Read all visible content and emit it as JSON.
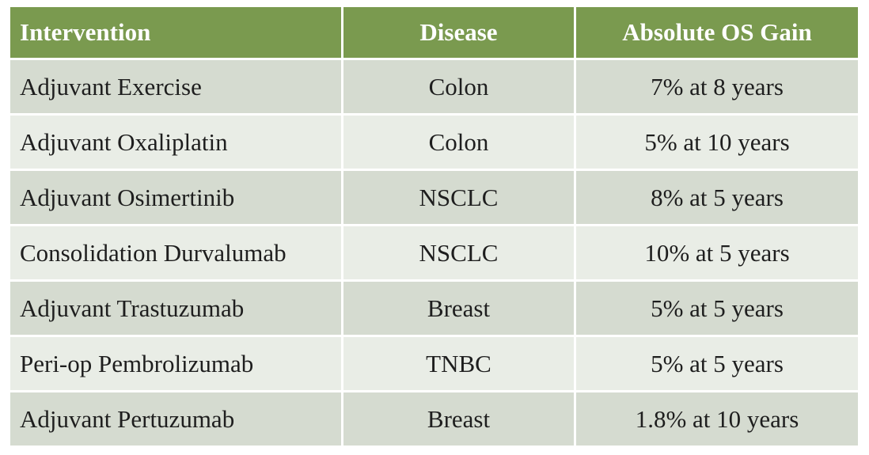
{
  "table": {
    "headers": {
      "intervention": "Intervention",
      "disease": "Disease",
      "gain": "Absolute OS Gain"
    },
    "rows": [
      {
        "intervention": "Adjuvant Exercise",
        "disease": "Colon",
        "gain": "7% at 8 years"
      },
      {
        "intervention": "Adjuvant Oxaliplatin",
        "disease": "Colon",
        "gain": "5% at 10 years"
      },
      {
        "intervention": "Adjuvant Osimertinib",
        "disease": "NSCLC",
        "gain": "8% at 5 years"
      },
      {
        "intervention": "Consolidation Durvalumab",
        "disease": "NSCLC",
        "gain": "10% at 5 years"
      },
      {
        "intervention": "Adjuvant Trastuzumab",
        "disease": "Breast",
        "gain": "5% at 5 years"
      },
      {
        "intervention": "Peri-op Pembrolizumab",
        "disease": "TNBC",
        "gain": "5% at 5 years"
      },
      {
        "intervention": "Adjuvant Pertuzumab",
        "disease": "Breast",
        "gain": "1.8% at 10 years"
      }
    ]
  },
  "colors": {
    "header_bg": "#7a9a4f",
    "header_text": "#ffffff",
    "row_odd": "#d5dbd0",
    "row_even": "#e9ede6"
  }
}
